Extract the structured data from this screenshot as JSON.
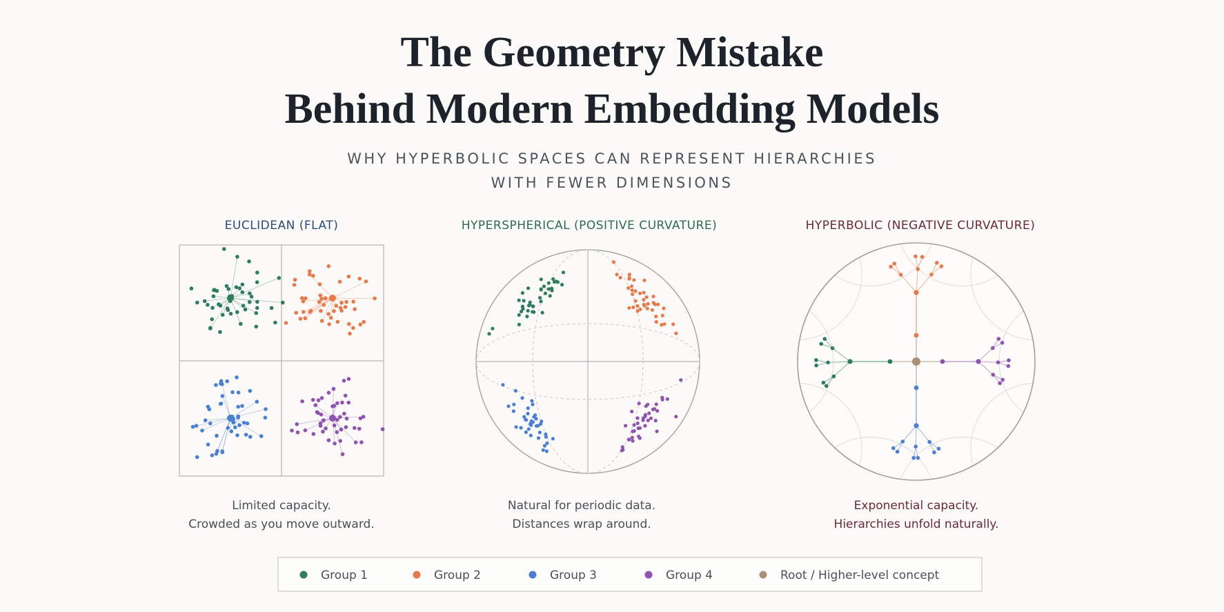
{
  "header": {
    "title_lines": [
      "The Geometry Mistake",
      "Behind Modern Embedding Models"
    ],
    "subtitle_lines": [
      "WHY HYPERBOLIC SPACES CAN REPRESENT HIERARCHIES",
      "WITH FEWER DIMENSIONS"
    ]
  },
  "panels": [
    {
      "title": "EUCLIDEAN (FLAT)",
      "caption_lines": [
        "Limited capacity.",
        "Crowded as you move outward."
      ]
    },
    {
      "title": "HYPERSPHERICAL (POSITIVE CURVATURE)",
      "caption_lines": [
        "Natural for periodic data.",
        "Distances wrap around."
      ]
    },
    {
      "title": "HYPERBOLIC (NEGATIVE CURVATURE)",
      "caption_lines": [
        "Exponential capacity.",
        "Hierarchies unfold naturally."
      ]
    }
  ],
  "legend": [
    {
      "label": "Group 1"
    },
    {
      "label": "Group 2"
    },
    {
      "label": "Group 3"
    },
    {
      "label": "Group 4"
    },
    {
      "label": "Root / Higher-level concept"
    }
  ]
}
